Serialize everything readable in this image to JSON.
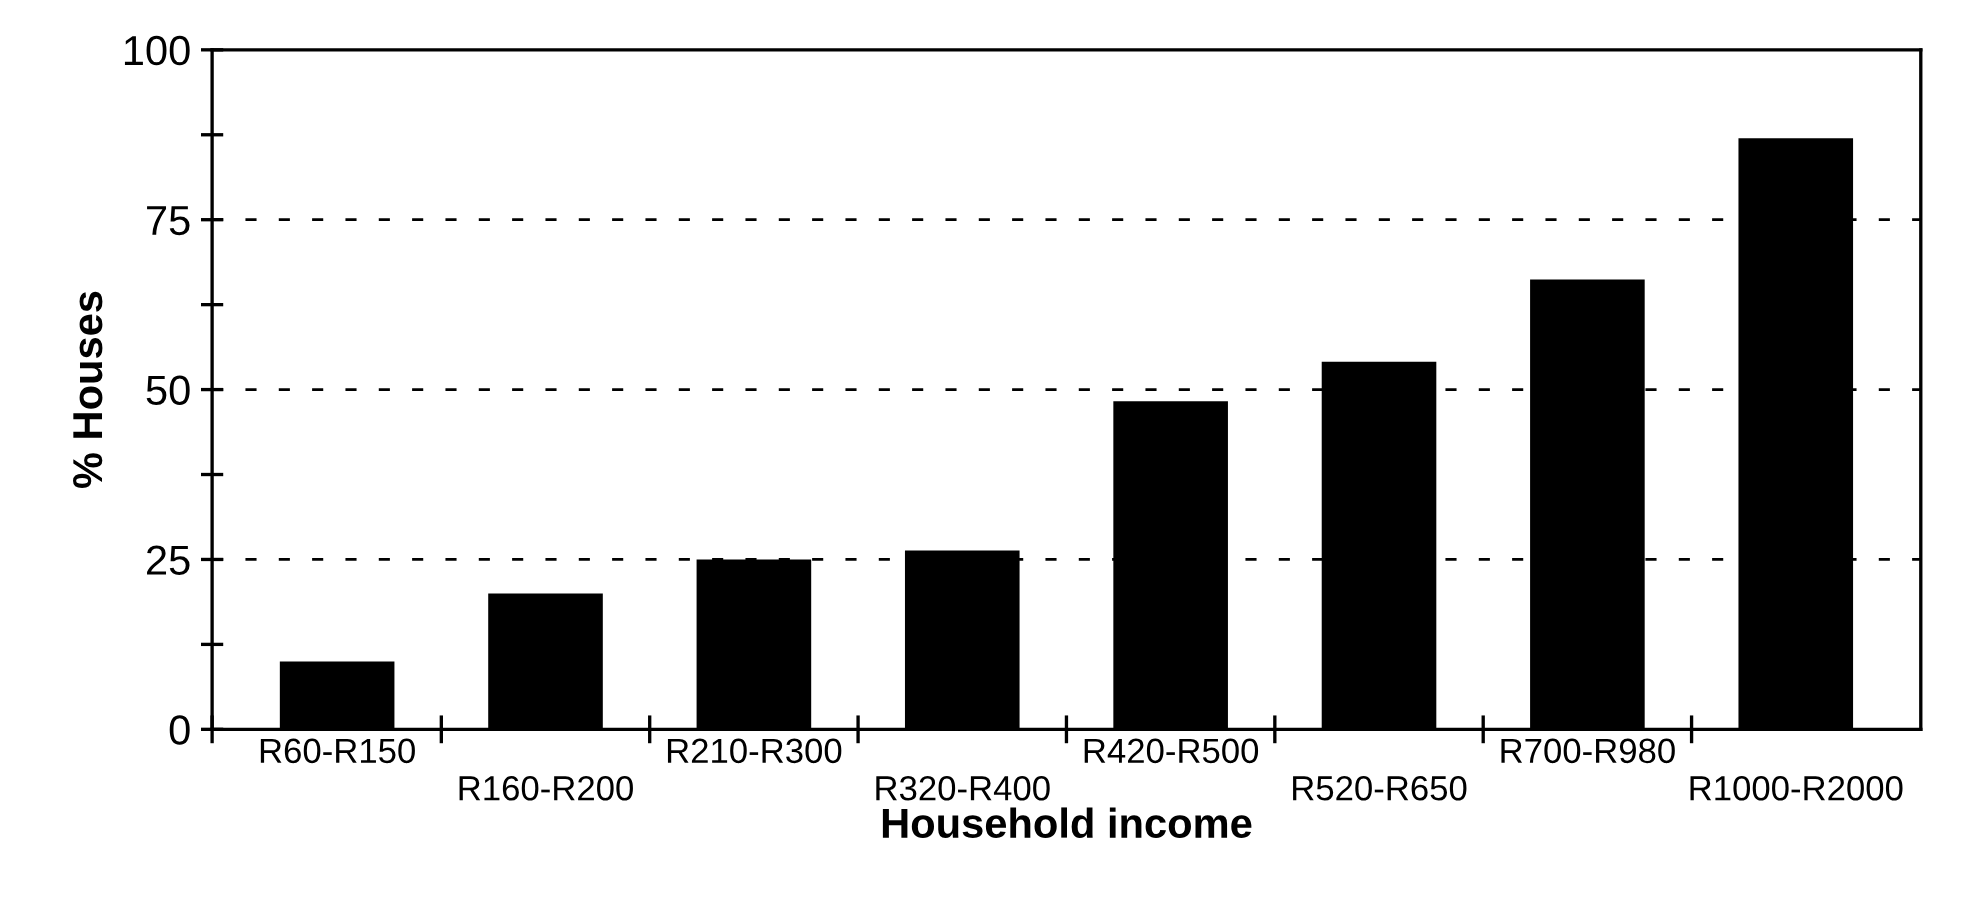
{
  "chart_data": {
    "type": "bar",
    "xlabel": "Household income",
    "ylabel": "% Houses",
    "categories": [
      "R60-R150",
      "R160-R200",
      "R210-R300",
      "R320-R400",
      "R420-R500",
      "R520-R650",
      "R700-R980",
      "R1000-R2000"
    ],
    "values": [
      10,
      20,
      25,
      26.3,
      48.3,
      54.1,
      66.2,
      87
    ],
    "color": "#000000",
    "ylim": [
      0,
      100
    ],
    "yticks": [
      0,
      {
        "value": 12.5,
        "label": null
      },
      25,
      {
        "value": 37.5,
        "label": null
      },
      50,
      {
        "value": 62.5,
        "label": null
      },
      75,
      {
        "value": 87.5,
        "label": null
      },
      100
    ],
    "ref_lines": [
      {
        "axis": "y",
        "value": 25,
        "line_style": "dashed",
        "color": "#000000"
      },
      {
        "axis": "y",
        "value": 50,
        "line_style": "dashed",
        "color": "#000000"
      },
      {
        "axis": "y",
        "value": 75,
        "line_style": "dashed",
        "color": "#000000"
      }
    ],
    "grid": false,
    "legend": false
  }
}
